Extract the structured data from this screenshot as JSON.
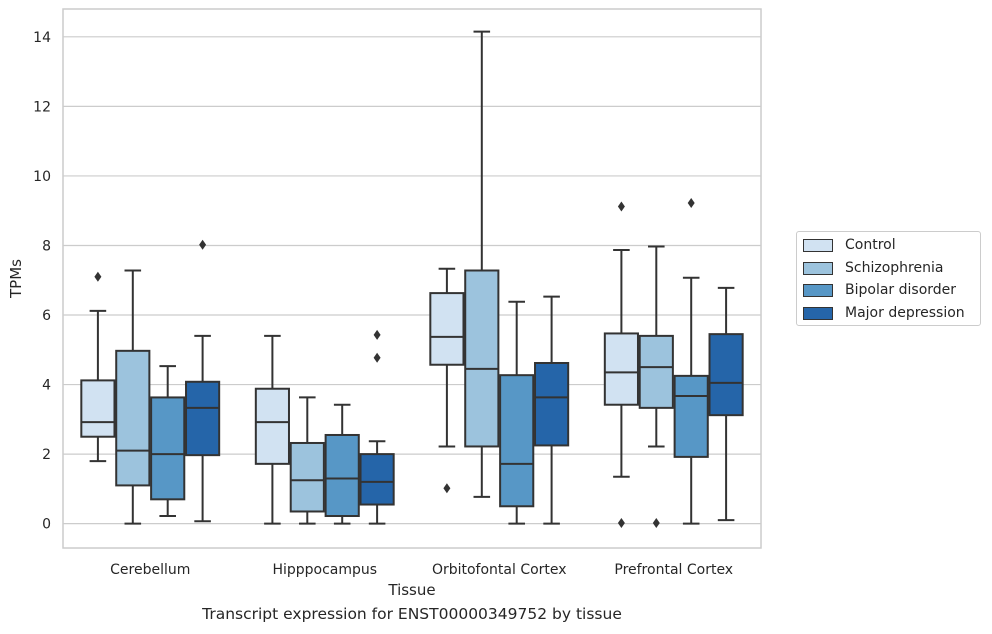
{
  "chart_data": {
    "type": "box",
    "title": "Transcript expression for ENST00000349752 by tissue",
    "xlabel": "Tissue",
    "ylabel": "TPMs",
    "ylim": [
      -0.7,
      14.8
    ],
    "yticks": [
      0,
      2,
      4,
      6,
      8,
      10,
      12,
      14
    ],
    "grid": true,
    "legend_position": "right",
    "categories": [
      "Cerebellum",
      "Hipppocampus",
      "Orbitofontal Cortex",
      "Prefrontal Cortex"
    ],
    "series": [
      {
        "name": "Control",
        "color": "#d1e2f2",
        "boxes": [
          {
            "min": 1.8,
            "q1": 2.5,
            "median": 2.92,
            "q3": 4.12,
            "max": 6.12,
            "outliers": [
              7.1
            ]
          },
          {
            "min": 0.0,
            "q1": 1.72,
            "median": 2.92,
            "q3": 3.88,
            "max": 5.4,
            "outliers": []
          },
          {
            "min": 2.22,
            "q1": 4.57,
            "median": 5.37,
            "q3": 6.63,
            "max": 7.33,
            "outliers": [
              1.02
            ]
          },
          {
            "min": 1.35,
            "q1": 3.42,
            "median": 4.35,
            "q3": 5.47,
            "max": 7.87,
            "outliers": [
              9.12,
              0.02
            ]
          }
        ]
      },
      {
        "name": "Schizophrenia",
        "color": "#9cc3dd",
        "boxes": [
          {
            "min": 0.0,
            "q1": 1.1,
            "median": 2.1,
            "q3": 4.97,
            "max": 7.28,
            "outliers": []
          },
          {
            "min": 0.0,
            "q1": 0.35,
            "median": 1.25,
            "q3": 2.32,
            "max": 3.63,
            "outliers": []
          },
          {
            "min": 0.77,
            "q1": 2.22,
            "median": 4.45,
            "q3": 7.28,
            "max": 14.15,
            "outliers": []
          },
          {
            "min": 2.22,
            "q1": 3.33,
            "median": 4.5,
            "q3": 5.4,
            "max": 7.97,
            "outliers": [
              0.02
            ]
          }
        ]
      },
      {
        "name": "Bipolar disorder",
        "color": "#5797c6",
        "boxes": [
          {
            "min": 0.22,
            "q1": 0.7,
            "median": 2.0,
            "q3": 3.63,
            "max": 4.53,
            "outliers": []
          },
          {
            "min": 0.0,
            "q1": 0.22,
            "median": 1.3,
            "q3": 2.55,
            "max": 3.42,
            "outliers": []
          },
          {
            "min": 0.0,
            "q1": 0.5,
            "median": 1.72,
            "q3": 4.27,
            "max": 6.38,
            "outliers": []
          },
          {
            "min": 0.0,
            "q1": 1.92,
            "median": 3.67,
            "q3": 4.25,
            "max": 7.07,
            "outliers": [
              9.22
            ]
          }
        ]
      },
      {
        "name": "Major depression",
        "color": "#2565a9",
        "boxes": [
          {
            "min": 0.07,
            "q1": 1.97,
            "median": 3.33,
            "q3": 4.08,
            "max": 5.4,
            "outliers": [
              8.02
            ]
          },
          {
            "min": 0.0,
            "q1": 0.55,
            "median": 1.2,
            "q3": 2.0,
            "max": 2.37,
            "outliers": [
              5.43,
              4.77
            ]
          },
          {
            "min": 0.0,
            "q1": 2.25,
            "median": 3.63,
            "q3": 4.62,
            "max": 6.53,
            "outliers": []
          },
          {
            "min": 0.1,
            "q1": 3.12,
            "median": 4.05,
            "q3": 5.45,
            "max": 6.78,
            "outliers": []
          }
        ]
      }
    ]
  }
}
